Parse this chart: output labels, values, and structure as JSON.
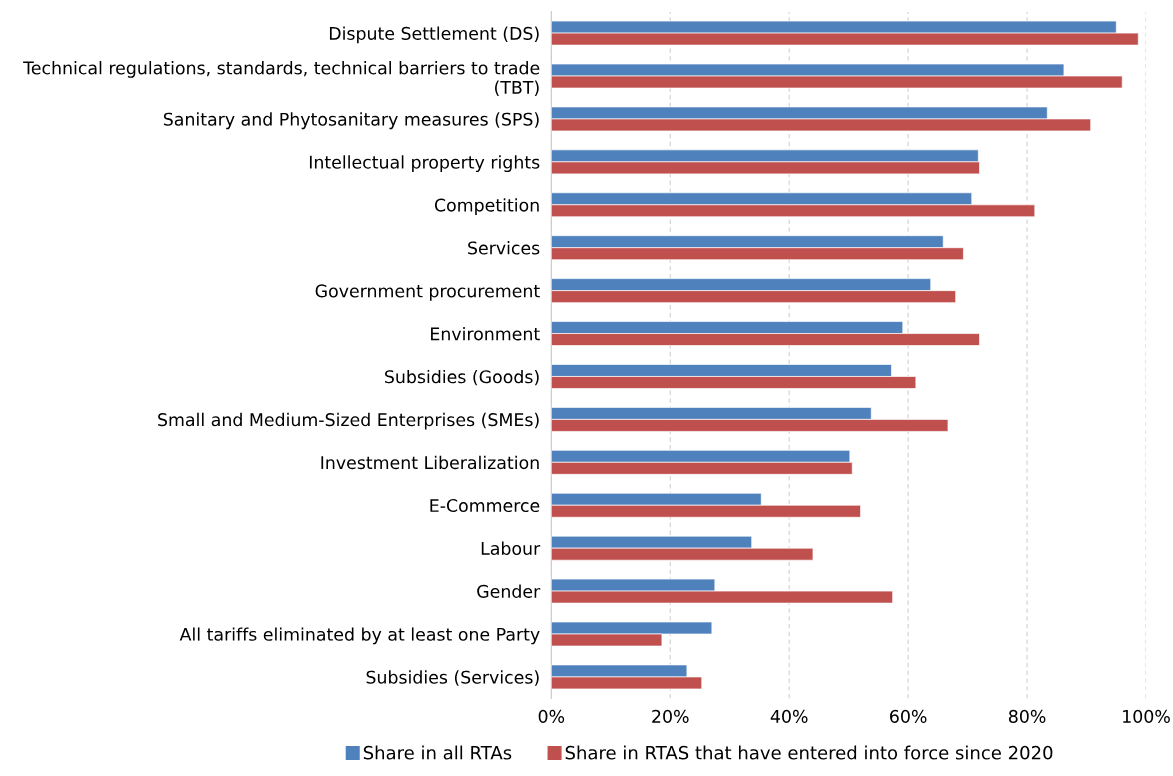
{
  "chart_data": {
    "type": "bar",
    "orientation": "horizontal",
    "categories": [
      "Dispute Settlement (DS)",
      "Technical regulations, standards, technical barriers to trade\n(TBT)",
      "Sanitary and Phytosanitary measures (SPS)",
      "Intellectual property rights",
      "Competition",
      "Services",
      "Government procurement",
      "Environment",
      "Subsidies (Goods)",
      "Small and Medium-Sized Enterprises (SMEs)",
      "Investment Liberalization",
      "E-Commerce",
      "Labour",
      "Gender",
      "All tariffs eliminated by at least one Party",
      "Subsidies (Services)"
    ],
    "series": [
      {
        "name": "Share in all RTAs",
        "color": "#4f81bd",
        "values": [
          95.0,
          86.2,
          83.4,
          71.8,
          70.7,
          65.9,
          63.8,
          59.1,
          57.2,
          53.8,
          50.2,
          35.3,
          33.7,
          27.5,
          27.0,
          22.8
        ]
      },
      {
        "name": "Share in RTAS that have entered into force since 2020",
        "color": "#c0504d",
        "values": [
          98.7,
          96.0,
          90.7,
          72.0,
          81.3,
          69.3,
          68.0,
          72.0,
          61.3,
          66.7,
          50.6,
          52.0,
          44.0,
          57.4,
          18.6,
          25.3
        ]
      }
    ],
    "xlim": [
      0,
      100
    ],
    "xticks": [
      {
        "value": 0,
        "label": "0%"
      },
      {
        "value": 20,
        "label": "20%"
      },
      {
        "value": 40,
        "label": "40%"
      },
      {
        "value": 60,
        "label": "60%"
      },
      {
        "value": 80,
        "label": "80%"
      },
      {
        "value": 100,
        "label": "100%"
      }
    ],
    "grid": "x",
    "legend": "bottom"
  }
}
